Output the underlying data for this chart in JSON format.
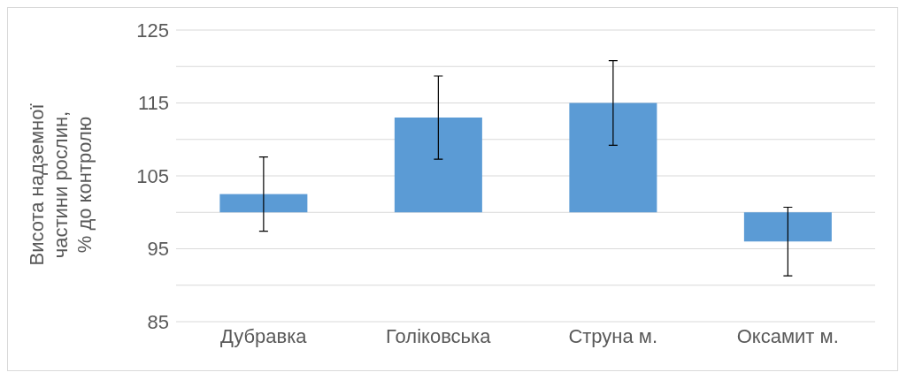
{
  "chart_data": {
    "type": "bar",
    "categories": [
      "Дубравка",
      "Голіковська",
      "Струна м.",
      "Оксамит м."
    ],
    "base": [
      100,
      100,
      100,
      100
    ],
    "values": [
      2.5,
      13,
      15,
      -4
    ],
    "errors": [
      5.1,
      5.7,
      5.8,
      4.7
    ],
    "color": "#5b9bd5",
    "ylabel": "Висота надземної\nчастини рослин,\n% до контролю",
    "ylim": [
      85,
      125
    ],
    "yticks": [
      85,
      {
        "value": 90,
        "label": null
      },
      95,
      {
        "value": 100,
        "label": null
      },
      105,
      {
        "value": 110,
        "label": null
      },
      115,
      {
        "value": 120,
        "label": null
      },
      125
    ],
    "grid": "y",
    "legend": false
  }
}
